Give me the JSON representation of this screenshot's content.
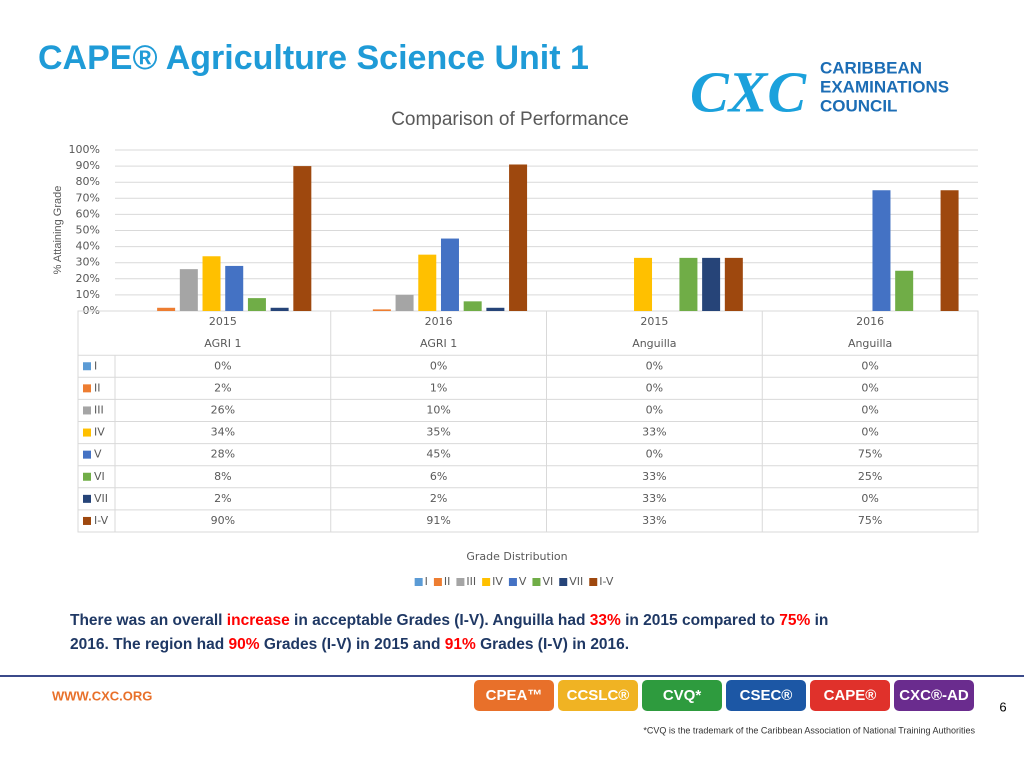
{
  "header": {
    "title": "CAPE® Agriculture Science Unit 1"
  },
  "logo": {
    "mark": "CXC",
    "lines": [
      "CARIBBEAN",
      "EXAMINATIONS",
      "COUNCIL"
    ]
  },
  "chart_data": {
    "type": "bar",
    "title": "Comparison of Performance",
    "y_label": "% Attaining Grade",
    "legend_title": "Grade Distribution",
    "categories": [
      [
        "2015",
        "AGRI 1"
      ],
      [
        "2016",
        "AGRI 1"
      ],
      [
        "2015",
        "Anguilla"
      ],
      [
        "2016",
        "Anguilla"
      ]
    ],
    "ylim": [
      0,
      100
    ],
    "yticks": [
      {
        "value": 0,
        "label": "0%"
      },
      {
        "value": 10,
        "label": "10%"
      },
      {
        "value": 20,
        "label": "20%"
      },
      {
        "value": 30,
        "label": "30%"
      },
      {
        "value": 40,
        "label": "40%"
      },
      {
        "value": 50,
        "label": "50%"
      },
      {
        "value": 60,
        "label": "60%"
      },
      {
        "value": 70,
        "label": "70%"
      },
      {
        "value": 80,
        "label": "80%"
      },
      {
        "value": 90,
        "label": "90%"
      },
      {
        "value": 100,
        "label": "100%"
      }
    ],
    "grid": true,
    "series": [
      {
        "name": "I",
        "color": "#5b9bd5",
        "values": [
          0,
          0,
          0,
          0
        ],
        "value_labels": [
          "0%",
          "0%",
          "0%",
          "0%"
        ]
      },
      {
        "name": "II",
        "color": "#ed7d31",
        "values": [
          2,
          1,
          0,
          0
        ],
        "value_labels": [
          "2%",
          "1%",
          "0%",
          "0%"
        ]
      },
      {
        "name": "III",
        "color": "#a5a5a5",
        "values": [
          26,
          10,
          0,
          0
        ],
        "value_labels": [
          "26%",
          "10%",
          "0%",
          "0%"
        ]
      },
      {
        "name": "IV",
        "color": "#ffc000",
        "values": [
          34,
          35,
          33,
          0
        ],
        "value_labels": [
          "34%",
          "35%",
          "33%",
          "0%"
        ]
      },
      {
        "name": "V",
        "color": "#4472c4",
        "values": [
          28,
          45,
          0,
          75
        ],
        "value_labels": [
          "28%",
          "45%",
          "0%",
          "75%"
        ]
      },
      {
        "name": "VI",
        "color": "#70ad47",
        "values": [
          8,
          6,
          33,
          25
        ],
        "value_labels": [
          "8%",
          "6%",
          "33%",
          "25%"
        ]
      },
      {
        "name": "VII",
        "color": "#264478",
        "values": [
          2,
          2,
          33,
          0
        ],
        "value_labels": [
          "2%",
          "2%",
          "33%",
          "0%"
        ]
      },
      {
        "name": "I-V",
        "color": "#9e480e",
        "values": [
          90,
          91,
          33,
          75
        ],
        "value_labels": [
          "90%",
          "91%",
          "33%",
          "75%"
        ]
      }
    ]
  },
  "summary": [
    [
      "There was an overall ",
      "increase",
      " in acceptable Grades (I-V). Anguilla had ",
      "33%",
      " in 2015 compared to ",
      "75%",
      " in"
    ],
    [
      "2016. The region had ",
      "90%",
      " Grades (I-V) in 2015 and ",
      "91%",
      " Grades (I-V) in 2016."
    ]
  ],
  "footer": {
    "url": "WWW.CXC.ORG",
    "badges": [
      "CPEA™",
      "CCSLC®",
      "CVQ*",
      "CSEC®",
      "CAPE®",
      "CXC®-AD"
    ],
    "page": "6",
    "note": "*CVQ is the trademark of the Caribbean Association of National Training Authorities"
  }
}
